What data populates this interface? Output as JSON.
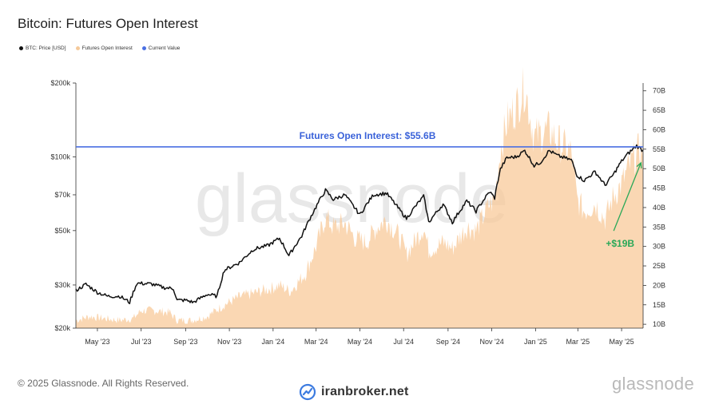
{
  "chart_data": {
    "type": "line",
    "title": "Bitcoin: Futures Open Interest",
    "legend": [
      {
        "name": "BTC: Price [USD]",
        "color": "#111111"
      },
      {
        "name": "Futures Open Interest",
        "color": "#f5c99a"
      },
      {
        "name": "Current Value",
        "color": "#4a6fe3"
      }
    ],
    "legend_position": "top-left",
    "grid": false,
    "x_ticks": [
      "May '23",
      "Jul '23",
      "Sep '23",
      "Nov '23",
      "Jan '24",
      "Mar '24",
      "May '24",
      "Jul '24",
      "Sep '24",
      "Nov '24",
      "Jan '25",
      "Mar '25",
      "May '25"
    ],
    "x_range": [
      "2023-04-01",
      "2025-05-31"
    ],
    "y_left": {
      "scale": "log",
      "range": [
        20000,
        200000
      ],
      "ticks": [
        20000,
        30000,
        50000,
        70000,
        100000,
        200000
      ],
      "tick_labels": [
        "$20k",
        "$30k",
        "$50k",
        "$70k",
        "$100k",
        "$200k"
      ]
    },
    "y_right": {
      "scale": "linear",
      "range": [
        9,
        72
      ],
      "ticks": [
        10,
        15,
        20,
        25,
        30,
        35,
        40,
        45,
        50,
        55,
        60,
        65,
        70
      ],
      "tick_labels": [
        "10B",
        "15B",
        "20B",
        "25B",
        "30B",
        "35B",
        "40B",
        "45B",
        "50B",
        "55B",
        "60B",
        "65B",
        "70B"
      ]
    },
    "price_series": {
      "name": "BTC: Price [USD]",
      "points": [
        [
          "2023-04-01",
          28500
        ],
        [
          "2023-04-15",
          30200
        ],
        [
          "2023-05-01",
          28000
        ],
        [
          "2023-05-15",
          27000
        ],
        [
          "2023-06-01",
          27000
        ],
        [
          "2023-06-15",
          25500
        ],
        [
          "2023-06-25",
          30500
        ],
        [
          "2023-07-15",
          30300
        ],
        [
          "2023-08-01",
          29300
        ],
        [
          "2023-08-15",
          29000
        ],
        [
          "2023-08-20",
          26000
        ],
        [
          "2023-09-01",
          26000
        ],
        [
          "2023-09-12",
          25500
        ],
        [
          "2023-10-01",
          27500
        ],
        [
          "2023-10-15",
          27000
        ],
        [
          "2023-10-25",
          34500
        ],
        [
          "2023-11-15",
          37000
        ],
        [
          "2023-12-05",
          42000
        ],
        [
          "2023-12-25",
          43500
        ],
        [
          "2024-01-10",
          46500
        ],
        [
          "2024-01-23",
          39500
        ],
        [
          "2024-02-10",
          47500
        ],
        [
          "2024-02-28",
          61000
        ],
        [
          "2024-03-14",
          73000
        ],
        [
          "2024-03-25",
          67000
        ],
        [
          "2024-04-10",
          70000
        ],
        [
          "2024-04-20",
          64000
        ],
        [
          "2024-05-01",
          58000
        ],
        [
          "2024-05-20",
          70000
        ],
        [
          "2024-06-07",
          71000
        ],
        [
          "2024-06-25",
          61000
        ],
        [
          "2024-07-05",
          56000
        ],
        [
          "2024-07-29",
          69000
        ],
        [
          "2024-08-05",
          54000
        ],
        [
          "2024-08-25",
          64000
        ],
        [
          "2024-09-07",
          54000
        ],
        [
          "2024-09-27",
          66000
        ],
        [
          "2024-10-10",
          60000
        ],
        [
          "2024-10-29",
          72000
        ],
        [
          "2024-11-05",
          68000
        ],
        [
          "2024-11-13",
          89000
        ],
        [
          "2024-11-22",
          99000
        ],
        [
          "2024-12-05",
          100000
        ],
        [
          "2024-12-17",
          106000
        ],
        [
          "2024-12-30",
          92000
        ],
        [
          "2025-01-08",
          95000
        ],
        [
          "2025-01-20",
          106000
        ],
        [
          "2025-02-01",
          101000
        ],
        [
          "2025-02-20",
          97000
        ],
        [
          "2025-02-28",
          84000
        ],
        [
          "2025-03-10",
          80000
        ],
        [
          "2025-03-25",
          87000
        ],
        [
          "2025-04-08",
          76500
        ],
        [
          "2025-04-20",
          85000
        ],
        [
          "2025-05-01",
          96000
        ],
        [
          "2025-05-10",
          103000
        ],
        [
          "2025-05-22",
          111000
        ],
        [
          "2025-05-31",
          106000
        ]
      ]
    },
    "oi_series": {
      "name": "Futures Open Interest",
      "unit": "B",
      "points": [
        [
          "2023-04-01",
          11.0
        ],
        [
          "2023-04-20",
          12.0
        ],
        [
          "2023-05-10",
          11.5
        ],
        [
          "2023-06-01",
          11.0
        ],
        [
          "2023-06-20",
          11.5
        ],
        [
          "2023-07-01",
          13.5
        ],
        [
          "2023-07-20",
          13.5
        ],
        [
          "2023-08-10",
          13.0
        ],
        [
          "2023-08-20",
          11.0
        ],
        [
          "2023-09-10",
          11.0
        ],
        [
          "2023-10-01",
          12.0
        ],
        [
          "2023-10-25",
          15.0
        ],
        [
          "2023-11-15",
          17.0
        ],
        [
          "2023-12-05",
          18.0
        ],
        [
          "2023-12-25",
          19.0
        ],
        [
          "2024-01-10",
          20.0
        ],
        [
          "2024-01-25",
          18.5
        ],
        [
          "2024-02-15",
          23.0
        ],
        [
          "2024-03-01",
          30.0
        ],
        [
          "2024-03-14",
          37.5
        ],
        [
          "2024-03-25",
          35.0
        ],
        [
          "2024-04-10",
          36.0
        ],
        [
          "2024-04-25",
          32.0
        ],
        [
          "2024-05-10",
          31.0
        ],
        [
          "2024-05-25",
          35.0
        ],
        [
          "2024-06-07",
          37.0
        ],
        [
          "2024-06-25",
          32.5
        ],
        [
          "2024-07-05",
          28.0
        ],
        [
          "2024-07-29",
          35.0
        ],
        [
          "2024-08-05",
          29.0
        ],
        [
          "2024-08-25",
          31.0
        ],
        [
          "2024-09-07",
          29.5
        ],
        [
          "2024-09-27",
          35.0
        ],
        [
          "2024-10-10",
          34.0
        ],
        [
          "2024-10-29",
          41.0
        ],
        [
          "2024-11-05",
          42.0
        ],
        [
          "2024-11-13",
          55.0
        ],
        [
          "2024-11-22",
          62.0
        ],
        [
          "2024-12-05",
          66.0
        ],
        [
          "2024-12-17",
          71.0
        ],
        [
          "2024-12-30",
          58.0
        ],
        [
          "2025-01-08",
          59.0
        ],
        [
          "2025-01-20",
          60.0
        ],
        [
          "2025-02-01",
          57.0
        ],
        [
          "2025-02-20",
          54.0
        ],
        [
          "2025-02-28",
          42.0
        ],
        [
          "2025-03-10",
          39.0
        ],
        [
          "2025-03-25",
          41.0
        ],
        [
          "2025-04-08",
          37.0
        ],
        [
          "2025-04-20",
          43.0
        ],
        [
          "2025-05-01",
          46.0
        ],
        [
          "2025-05-10",
          50.0
        ],
        [
          "2025-05-22",
          54.0
        ],
        [
          "2025-05-31",
          55.6
        ]
      ]
    },
    "current_value": {
      "value": 55.6,
      "label": "Futures Open Interest: $55.6B"
    },
    "annotation": {
      "label": "+$19B",
      "color": "#2aa858",
      "from": [
        "2025-04-20",
        34.0
      ],
      "to": [
        "2025-05-28",
        51.5
      ]
    },
    "watermark": "glassnode"
  },
  "footer": {
    "copyright": "© 2025 Glassnode. All Rights Reserved.",
    "broker": "iranbroker.net",
    "brand": "glassnode"
  }
}
